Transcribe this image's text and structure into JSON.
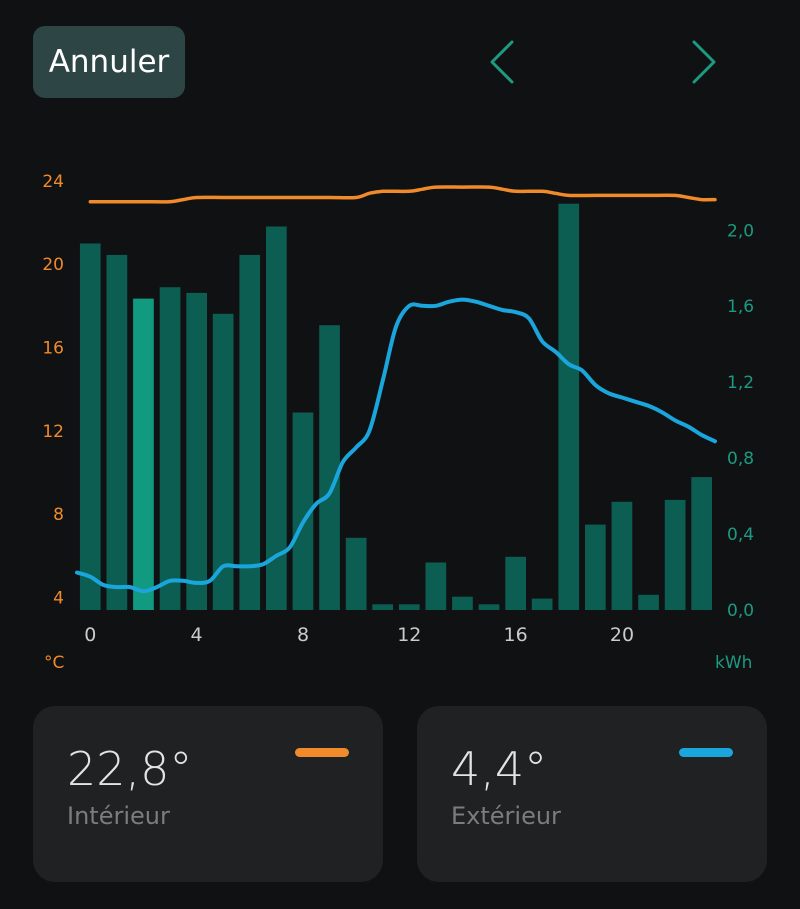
{
  "header": {
    "cancel_label": "Annuler",
    "prev_icon": "chevron-left-icon",
    "next_icon": "chevron-right-icon"
  },
  "colors": {
    "indoor": "#f08a2a",
    "outdoor": "#1aa6dc",
    "bar": "#0c5e52",
    "bar_highlight": "#119a7f",
    "accent_axis": "#1d9a82"
  },
  "chart_data": {
    "type": "bar+line",
    "x_ticks": [
      "0",
      "4",
      "8",
      "12",
      "16",
      "20"
    ],
    "x_tick_values": [
      0,
      4,
      8,
      12,
      16,
      20
    ],
    "xlim": [
      -0.5,
      23.5
    ],
    "left_axis": {
      "unit": "°C",
      "ticks": [
        "4",
        "8",
        "12",
        "16",
        "20",
        "24"
      ],
      "tick_values": [
        4,
        8,
        12,
        16,
        20,
        24
      ],
      "ylim": [
        3.4,
        25
      ]
    },
    "right_axis": {
      "unit": "kWh",
      "ticks": [
        "0,0",
        "0,4",
        "0,8",
        "1,2",
        "1,6",
        "2,0"
      ],
      "tick_values": [
        0,
        0.4,
        0.8,
        1.2,
        1.6,
        2.0
      ],
      "ylim": [
        0,
        2.37
      ]
    },
    "bars": {
      "axis": "right",
      "hours": [
        0,
        1,
        2,
        3,
        4,
        5,
        6,
        7,
        8,
        9,
        10,
        11,
        12,
        13,
        14,
        15,
        16,
        17,
        18,
        19,
        20,
        21,
        22,
        23
      ],
      "values": [
        1.93,
        1.87,
        1.64,
        1.7,
        1.67,
        1.56,
        1.87,
        2.02,
        1.04,
        1.5,
        0.38,
        0.03,
        0.03,
        0.25,
        0.07,
        0.03,
        0.28,
        0.06,
        2.14,
        0.45,
        0.57,
        0.08,
        0.58,
        0.7
      ],
      "highlight_index": 2
    },
    "series": [
      {
        "key": "indoor",
        "axis": "left",
        "x": [
          0,
          1,
          2,
          3,
          3.5,
          4,
          5,
          6,
          7,
          8,
          9,
          10,
          10.5,
          11,
          12,
          12.5,
          13,
          14,
          15,
          15.5,
          16,
          17,
          17.5,
          18,
          19,
          20,
          21,
          22,
          22.5,
          23,
          23.5
        ],
        "values": [
          23.0,
          23.0,
          23.0,
          23.0,
          23.1,
          23.2,
          23.2,
          23.2,
          23.2,
          23.2,
          23.2,
          23.2,
          23.4,
          23.5,
          23.5,
          23.6,
          23.7,
          23.7,
          23.7,
          23.6,
          23.5,
          23.5,
          23.4,
          23.3,
          23.3,
          23.3,
          23.3,
          23.3,
          23.2,
          23.1,
          23.1
        ]
      },
      {
        "key": "outdoor",
        "axis": "left",
        "x": [
          -0.5,
          0,
          0.5,
          1,
          1.5,
          2,
          2.5,
          3,
          3.5,
          4,
          4.5,
          5,
          5.5,
          6,
          6.5,
          7,
          7.5,
          8,
          8.5,
          9,
          9.5,
          10,
          10.5,
          11,
          11.5,
          12,
          12.5,
          13,
          13.5,
          14,
          14.5,
          15,
          15.5,
          16,
          16.5,
          17,
          17.5,
          18,
          18.5,
          19,
          19.5,
          20,
          20.5,
          21,
          21.5,
          22,
          22.5,
          23,
          23.5
        ],
        "values": [
          5.2,
          5.0,
          4.6,
          4.5,
          4.5,
          4.3,
          4.5,
          4.8,
          4.8,
          4.7,
          4.8,
          5.5,
          5.5,
          5.5,
          5.6,
          6.0,
          6.4,
          7.6,
          8.5,
          9.0,
          10.5,
          11.2,
          12.0,
          14.4,
          17.0,
          18.0,
          18.0,
          18.0,
          18.2,
          18.3,
          18.2,
          18.0,
          17.8,
          17.7,
          17.4,
          16.3,
          15.8,
          15.2,
          14.9,
          14.2,
          13.8,
          13.6,
          13.4,
          13.2,
          12.9,
          12.5,
          12.2,
          11.8,
          11.5
        ]
      }
    ],
    "legend": "none",
    "grid": false
  },
  "cards": [
    {
      "value": "22,8°",
      "label": "Intérieur",
      "color": "#f08a2a"
    },
    {
      "value": "4,4°",
      "label": "Extérieur",
      "color": "#1aa6dc"
    }
  ]
}
